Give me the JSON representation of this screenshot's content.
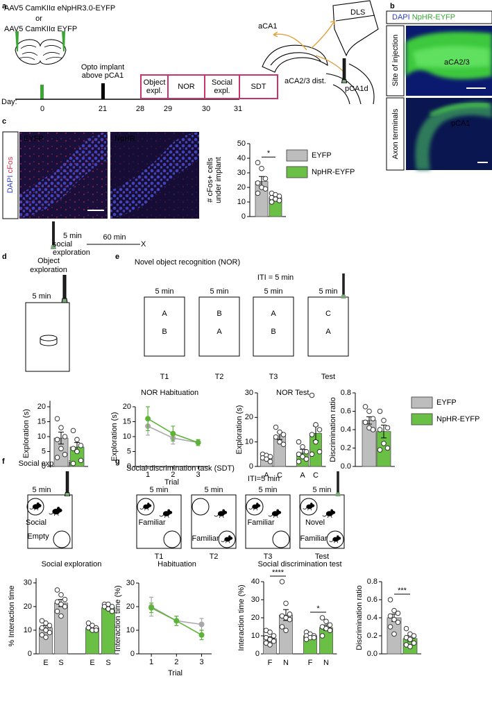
{
  "panels": {
    "a": {
      "letter": "a",
      "virus": "AAV5 CamKIIα eNpHR3.0-EYFP",
      "or": "or",
      "control": "AAV5 CamKIIα EYFP",
      "implant": [
        "Opto implant",
        "above pCA1"
      ],
      "day_label": "Day:",
      "days": [
        "0",
        "21",
        "28",
        "29",
        "30",
        "31"
      ],
      "stages": [
        [
          "Object",
          "expl."
        ],
        [
          "NOR"
        ],
        [
          "Social",
          "expl."
        ],
        [
          "SDT"
        ]
      ],
      "regions": [
        "aCA1",
        "DLS",
        "aCA2/3 dist.",
        "pCA1d"
      ]
    },
    "b": {
      "letter": "b",
      "stain": [
        "DAPI",
        "NpHR-EYFP"
      ],
      "images": [
        {
          "side": "Site of injection",
          "region": "aCA2/3"
        },
        {
          "side": "Axon terminals",
          "region": "pCA1"
        }
      ]
    },
    "c": {
      "letter": "c",
      "stain": [
        "DAPI",
        "cFos"
      ],
      "images": [
        "EYFP",
        "NpHR"
      ],
      "protocol": {
        "duration": "5 min",
        "task": [
          "social",
          "exploration"
        ],
        "delay": "60 min",
        "end": "X"
      }
    },
    "d": {
      "letter": "d",
      "title": [
        "Object",
        "exploration"
      ],
      "duration": "5 min"
    },
    "e": {
      "letter": "e",
      "title": "Novel object recognition (NOR)",
      "iti": "ITI = 5 min",
      "trials": [
        {
          "duration": "5 min",
          "objects": [
            "A",
            "B"
          ],
          "label": "T1"
        },
        {
          "duration": "5 min",
          "objects": [
            "B",
            "A"
          ],
          "label": "T2"
        },
        {
          "duration": "5 min",
          "objects": [
            "A",
            "B"
          ],
          "label": "T3"
        },
        {
          "duration": "5 min",
          "objects": [
            "C",
            "A"
          ],
          "label": "Test"
        }
      ]
    },
    "f": {
      "letter": "f",
      "title": "Social exploration",
      "duration": "5 min",
      "zones": [
        "Social",
        "Empty"
      ]
    },
    "g": {
      "letter": "g",
      "title": "Social discrimination task (SDT)",
      "iti": "ITI=5 min",
      "trials": [
        {
          "duration": "5 min",
          "zones": [
            "Familiar"
          ],
          "label": "T1"
        },
        {
          "duration": "5 min",
          "zones": [
            "Familiar"
          ],
          "label": "T2"
        },
        {
          "duration": "5 min",
          "zones": [
            "Familiar"
          ],
          "label": "T3"
        },
        {
          "duration": "5 min",
          "zones": [
            "Novel",
            "Familiar"
          ],
          "label": "Test"
        }
      ]
    }
  },
  "chart_data": [
    {
      "type": "bar",
      "ylabel": [
        "# cFos+ cells",
        "under implant"
      ],
      "ylim": [
        0,
        50
      ],
      "yticks": [
        0,
        10,
        20,
        30,
        40,
        50
      ],
      "categories": [
        null
      ],
      "legend": "right",
      "significance": [
        {
          "label": "*"
        }
      ],
      "series": [
        {
          "name": "EYFP",
          "color": "#bdbdbd",
          "values": [
            24
          ],
          "errors": [
            3.5
          ],
          "points": [
            [
              37,
              33,
              26,
              23,
              20,
              19,
              16
            ]
          ]
        },
        {
          "name": "NpHR-EYFP",
          "color": "#6abf45",
          "values": [
            13
          ],
          "errors": [
            1.3
          ],
          "points": [
            [
              16,
              15,
              14,
              13,
              12,
              11,
              10
            ]
          ]
        }
      ]
    },
    {
      "type": "bar",
      "ylabel": "Exploration (s)",
      "ylim": [
        0,
        22
      ],
      "yticks": [
        0,
        5,
        10,
        15,
        20
      ],
      "categories": [
        null
      ],
      "series": [
        {
          "color": "#bdbdbd",
          "values": [
            9.5
          ],
          "errors": [
            2
          ],
          "points": [
            [
              16,
              13,
              10,
              9,
              6,
              4,
              3
            ]
          ]
        },
        {
          "color": "#6abf45",
          "values": [
            6.5
          ],
          "errors": [
            1.5
          ],
          "points": [
            [
              12,
              9,
              7,
              6,
              5,
              2,
              1
            ]
          ]
        }
      ]
    },
    {
      "type": "line",
      "title": "NOR Habituation",
      "xlabel": "Trial",
      "ylabel": "Exploration (s)",
      "x": [
        1,
        2,
        3
      ],
      "xlim": [
        0.5,
        3.4
      ],
      "xticks": [
        1,
        2,
        3
      ],
      "ylim": [
        0,
        20
      ],
      "yticks": [
        0,
        5,
        10,
        15,
        20
      ],
      "series": [
        {
          "color": "#a8a8a8",
          "values": [
            13.5,
            9.5,
            8
          ],
          "errors": [
            3,
            2,
            1
          ]
        },
        {
          "color": "#5cb338",
          "values": [
            16,
            11,
            8
          ],
          "errors": [
            4,
            2.5,
            1
          ]
        }
      ]
    },
    {
      "type": "bar",
      "title": "NOR Test",
      "ylabel": "Exploration (s)",
      "ylim": [
        0,
        30
      ],
      "yticks": [
        0,
        10,
        20,
        30
      ],
      "categories": [
        "A",
        "C"
      ],
      "series": [
        {
          "color": "#bdbdbd",
          "values": [
            4,
            12.5
          ],
          "errors": [
            0.8,
            1.5
          ],
          "points": [
            [
              5,
              4.5,
              4,
              3.5,
              3,
              2
            ],
            [
              16,
              14,
              13,
              12,
              10,
              9
            ]
          ]
        },
        {
          "color": "#6abf45",
          "values": [
            5.5,
            13.5
          ],
          "errors": [
            1.5,
            3
          ],
          "points": [
            [
              10,
              8,
              6,
              5,
              4,
              3,
              2
            ],
            [
              29,
              17,
              15,
              13,
              10,
              6,
              5
            ]
          ]
        }
      ]
    },
    {
      "type": "bar",
      "ylabel": "Discrimination ratio",
      "ylim": [
        0,
        0.8
      ],
      "yticks": [
        {
          "value": 0,
          "label": "0.0"
        },
        0.2,
        0.4,
        0.6,
        0.8
      ],
      "categories": [
        null
      ],
      "legend": "right",
      "series": [
        {
          "name": "EYFP",
          "color": "#bdbdbd",
          "values": [
            0.5
          ],
          "errors": [
            0.04
          ],
          "points": [
            [
              0.65,
              0.6,
              0.52,
              0.48,
              0.42,
              0.4
            ]
          ]
        },
        {
          "name": "NpHR-EYFP",
          "color": "#6abf45",
          "values": [
            0.38
          ],
          "errors": [
            0.07
          ],
          "points": [
            [
              0.6,
              0.5,
              0.42,
              0.4,
              0.25,
              0.2,
              0.18
            ]
          ]
        }
      ]
    },
    {
      "type": "bar",
      "title": "Social exploration",
      "ylabel": "% Interaction time",
      "ylim": [
        0,
        32
      ],
      "yticks": [
        0,
        10,
        20,
        30
      ],
      "categories": [
        "E",
        "S"
      ],
      "series": [
        {
          "color": "#bdbdbd",
          "values": [
            11,
            21.5
          ],
          "errors": [
            1,
            1.5
          ],
          "points": [
            [
              14,
              13,
              12,
              11,
              10,
              9,
              8,
              7
            ],
            [
              27,
              25,
              23,
              22,
              21,
              20,
              18,
              16
            ]
          ]
        },
        {
          "color": "#6abf45",
          "values": [
            11,
            19.5
          ],
          "errors": [
            0.8,
            0.8
          ],
          "points": [
            [
              13,
              12,
              11,
              11,
              10,
              10
            ],
            [
              21,
              21,
              20,
              20,
              19,
              18
            ]
          ]
        }
      ]
    },
    {
      "type": "line",
      "title": "Habituation",
      "xlabel": "Trial",
      "ylabel": "Interaction time (%)",
      "x": [
        1,
        2,
        3
      ],
      "xlim": [
        0.5,
        3.4
      ],
      "xticks": [
        1,
        2,
        3
      ],
      "ylim": [
        0,
        30
      ],
      "yticks": [
        0,
        10,
        20,
        30
      ],
      "series": [
        {
          "color": "#a8a8a8",
          "values": [
            20,
            14,
            12.5
          ],
          "errors": [
            4,
            2,
            2.5
          ]
        },
        {
          "color": "#5cb338",
          "values": [
            19.5,
            14,
            8
          ],
          "errors": [
            2,
            2,
            2
          ]
        }
      ]
    },
    {
      "type": "bar",
      "title": "Social discrimination test",
      "ylabel": "Interaction time (%)",
      "ylim": [
        0,
        40
      ],
      "yticks": [
        0,
        10,
        20,
        30,
        40
      ],
      "categories": [
        "F",
        "N"
      ],
      "significance": [
        {
          "label": "****",
          "series": 0
        },
        {
          "label": "*",
          "series": 1
        }
      ],
      "series": [
        {
          "color": "#bdbdbd",
          "values": [
            8.5,
            21.5
          ],
          "errors": [
            1,
            3
          ],
          "points": [
            [
              13,
              12,
              10,
              9,
              8,
              7,
              6,
              5
            ],
            [
              40,
              28,
              22,
              21,
              20,
              19,
              15,
              13
            ]
          ]
        },
        {
          "color": "#6abf45",
          "values": [
            10,
            14.5
          ],
          "errors": [
            0.7,
            1.5
          ],
          "points": [
            [
              12,
              11,
              10,
              10,
              9,
              9,
              8
            ],
            [
              20,
              18,
              16,
              15,
              14,
              13,
              10
            ]
          ]
        }
      ]
    },
    {
      "type": "bar",
      "ylabel": "Discrimination ratio",
      "ylim": [
        0,
        0.8
      ],
      "yticks": [
        {
          "value": 0,
          "label": "0.0"
        },
        0.2,
        0.4,
        0.6,
        0.8
      ],
      "categories": [
        null
      ],
      "significance": [
        {
          "label": "***"
        }
      ],
      "series": [
        {
          "color": "#bdbdbd",
          "values": [
            0.4
          ],
          "errors": [
            0.04
          ],
          "points": [
            [
              0.6,
              0.48,
              0.45,
              0.42,
              0.38,
              0.35,
              0.3,
              0.22
            ]
          ]
        },
        {
          "color": "#6abf45",
          "values": [
            0.17
          ],
          "errors": [
            0.03
          ],
          "points": [
            [
              0.28,
              0.22,
              0.2,
              0.18,
              0.16,
              0.12,
              0.1,
              0.08
            ]
          ]
        }
      ]
    }
  ]
}
